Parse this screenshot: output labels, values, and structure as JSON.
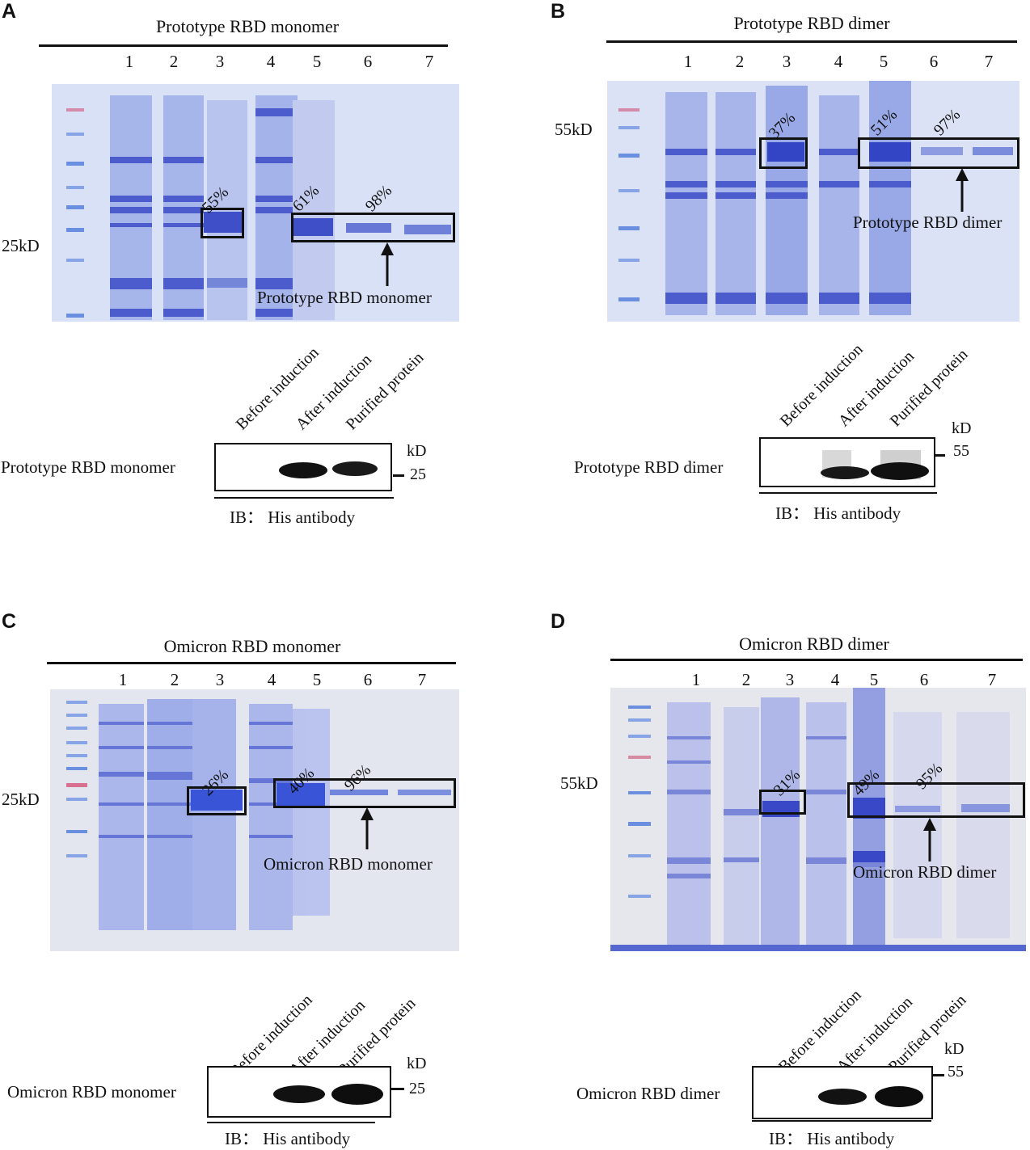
{
  "panels": {
    "A": {
      "letter": "A",
      "title": "Prototype RBD monomer",
      "lanes": [
        "1",
        "2",
        "3",
        "4",
        "5",
        "6",
        "7"
      ],
      "marker_label": "25kD",
      "percentages": [
        "55%",
        "61%",
        "98%"
      ],
      "target_label": "Prototype RBD monomer",
      "wb_lanes": [
        "Before induction",
        "After induction",
        "Purified protein"
      ],
      "blot_name": "Prototype RBD monomer",
      "kd_unit": "kD",
      "kd_value": "25",
      "ib_label": "IB：  His antibody"
    },
    "B": {
      "letter": "B",
      "title": "Prototype RBD  dimer",
      "lanes": [
        "1",
        "2",
        "3",
        "4",
        "5",
        "6",
        "7"
      ],
      "marker_label": "55kD",
      "percentages": [
        "37%",
        "51%",
        "97%"
      ],
      "target_label": "Prototype RBD  dimer",
      "wb_lanes": [
        "Before induction",
        "After induction",
        "Purified protein"
      ],
      "blot_name": "Prototype RBD dimer",
      "kd_unit": "kD",
      "kd_value": "55",
      "ib_label": "IB：  His antibody"
    },
    "C": {
      "letter": "C",
      "title": "Omicron RBD monomer",
      "lanes": [
        "1",
        "2",
        "3",
        "4",
        "5",
        "6",
        "7"
      ],
      "marker_label": "25kD",
      "percentages": [
        "26%",
        "40%",
        "96%"
      ],
      "target_label": "Omicron RBD monomer",
      "wb_lanes": [
        "Before induction",
        "After induction",
        "Purified protein"
      ],
      "blot_name": "Omicron RBD monomer",
      "kd_unit": "kD",
      "kd_value": "25",
      "ib_label": "IB：  His antibody"
    },
    "D": {
      "letter": "D",
      "title": "Omicron  RBD  dimer",
      "lanes": [
        "1",
        "2",
        "3",
        "4",
        "5",
        "6",
        "7"
      ],
      "marker_label": "55kD",
      "percentages": [
        "31%",
        "49%",
        "95%"
      ],
      "target_label": "Omicron RBD dimer",
      "wb_lanes": [
        "Before induction",
        "After induction",
        "Purified protein"
      ],
      "blot_name": "Omicron RBD dimer",
      "kd_unit": "kD",
      "kd_value": "55",
      "ib_label": "IB：  His antibody"
    }
  },
  "colors": {
    "gel_background_prototype": "#d9e0f5",
    "gel_background_omicron": "#e4e6ee",
    "band_blue": "#4654c9",
    "marker_blue": "#6a8ee0",
    "marker_red": "#d86a8a",
    "blot_band": "#111111"
  }
}
